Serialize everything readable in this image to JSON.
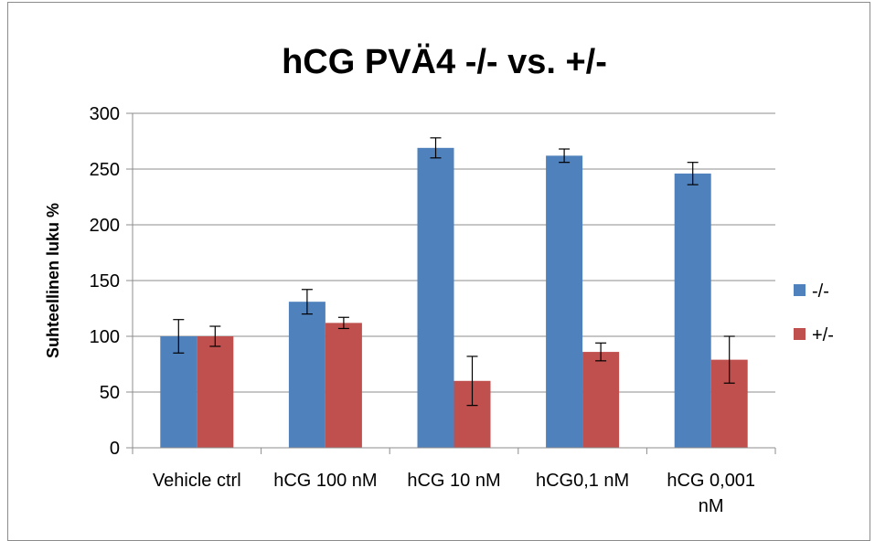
{
  "chart_data": {
    "type": "bar",
    "title": "hCG PVÄ4 -/- vs. +/-",
    "xlabel": "",
    "ylabel": "Suhteellinen luku %",
    "ylim": [
      0,
      300
    ],
    "yticks": [
      0,
      50,
      100,
      150,
      200,
      250,
      300
    ],
    "categories": [
      "Vehicle ctrl",
      "hCG 100 nM",
      "hCG 10 nM",
      "hCG0,1 nM",
      "hCG 0,001 nM"
    ],
    "category_lines": [
      [
        "Vehicle ctrl"
      ],
      [
        "hCG 100 nM"
      ],
      [
        "hCG 10 nM"
      ],
      [
        "hCG0,1 nM"
      ],
      [
        "hCG 0,001",
        "nM"
      ]
    ],
    "series": [
      {
        "name": "-/-",
        "color": "#4f81bd",
        "values": [
          100,
          131,
          269,
          262,
          246
        ],
        "errors": [
          15,
          11,
          9,
          6,
          10
        ]
      },
      {
        "name": "+/-",
        "color": "#c0504d",
        "values": [
          100,
          112,
          60,
          86,
          79
        ],
        "errors": [
          9,
          5,
          22,
          8,
          21
        ]
      }
    ],
    "grid": true,
    "legend_position": "right"
  }
}
